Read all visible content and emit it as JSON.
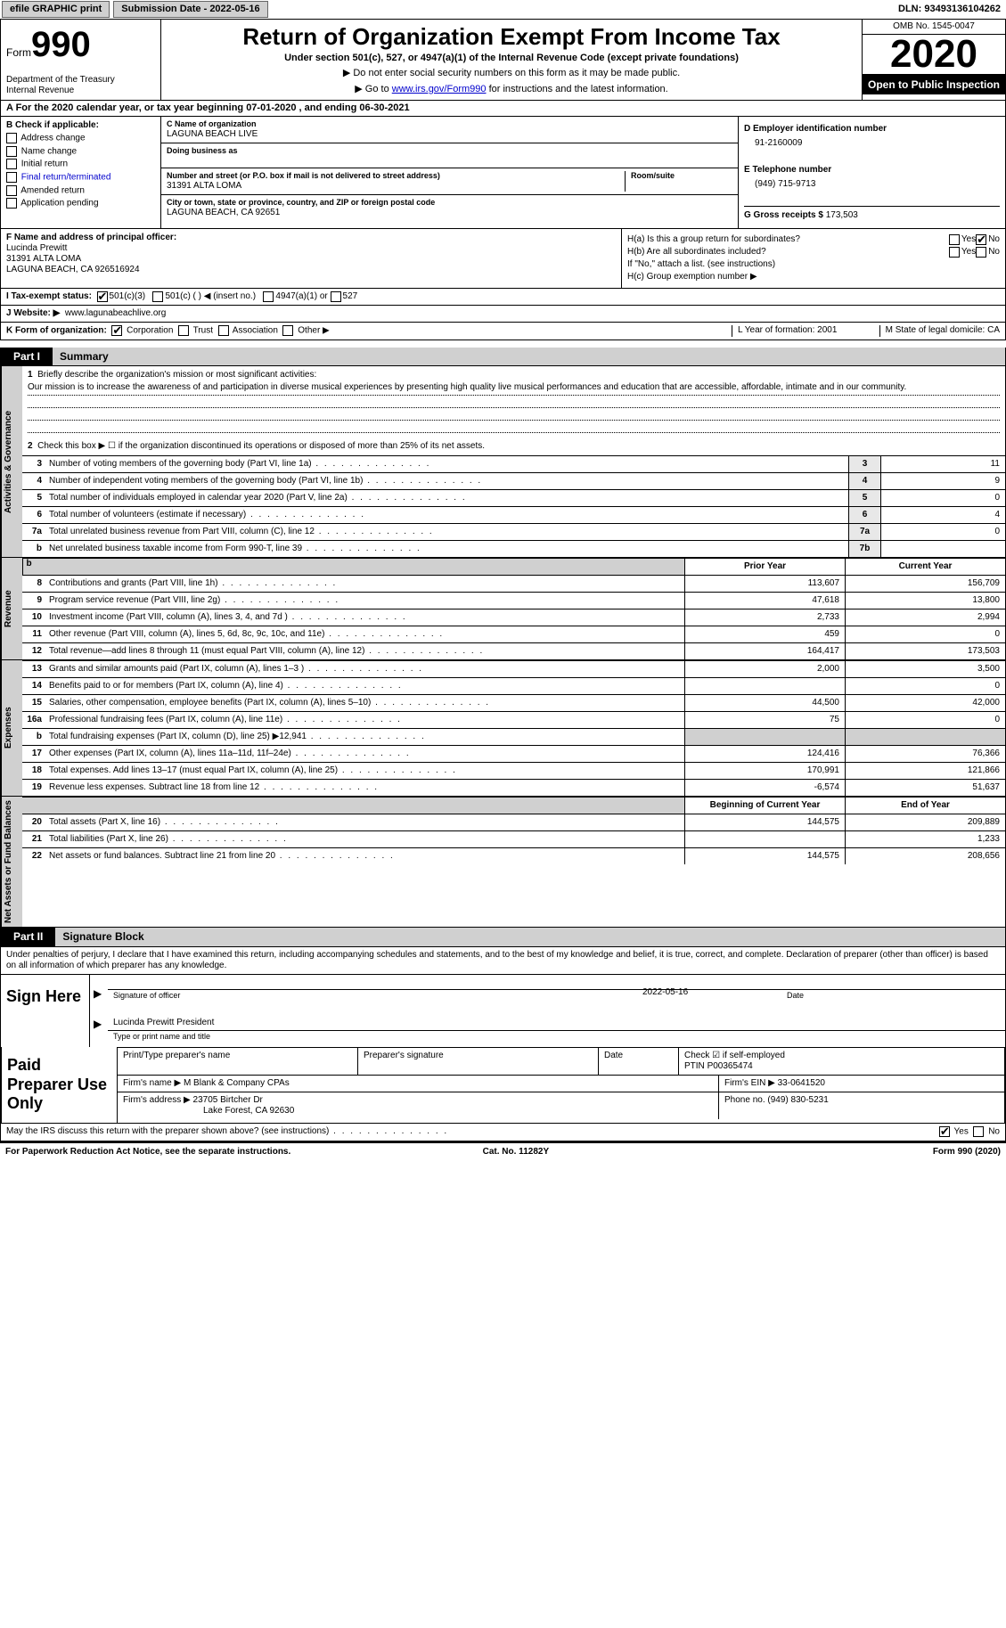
{
  "topbar": {
    "efile": "efile GRAPHIC print",
    "submission": "Submission Date - 2022-05-16",
    "dln_label": "DLN:",
    "dln": "93493136104262"
  },
  "header": {
    "form_label": "Form",
    "form_num": "990",
    "dept": "Department of the Treasury\nInternal Revenue",
    "title": "Return of Organization Exempt From Income Tax",
    "subtitle": "Under section 501(c), 527, or 4947(a)(1) of the Internal Revenue Code (except private foundations)",
    "note1": "▶ Do not enter social security numbers on this form as it may be made public.",
    "note2_pre": "▶ Go to ",
    "note2_link": "www.irs.gov/Form990",
    "note2_post": " for instructions and the latest information.",
    "omb": "OMB No. 1545-0047",
    "year": "2020",
    "inspection": "Open to Public Inspection"
  },
  "line_a": "A For the 2020 calendar year, or tax year beginning 07-01-2020    , and ending 06-30-2021",
  "section_b": {
    "label": "B Check if applicable:",
    "items": [
      "Address change",
      "Name change",
      "Initial return",
      "Final return/terminated",
      "Amended return",
      "Application pending"
    ]
  },
  "section_c": {
    "name_lbl": "C Name of organization",
    "name": "LAGUNA BEACH LIVE",
    "dba_lbl": "Doing business as",
    "dba": "",
    "addr_lbl": "Number and street (or P.O. box if mail is not delivered to street address)",
    "room_lbl": "Room/suite",
    "addr": "31391 ALTA LOMA",
    "city_lbl": "City or town, state or province, country, and ZIP or foreign postal code",
    "city": "LAGUNA BEACH, CA  92651"
  },
  "section_d": {
    "lbl": "D Employer identification number",
    "ein": "91-2160009",
    "phone_lbl": "E Telephone number",
    "phone": "(949) 715-9713",
    "gross_lbl": "G Gross receipts $",
    "gross": "173,503"
  },
  "section_f": {
    "lbl": "F  Name and address of principal officer:",
    "name": "Lucinda Prewitt",
    "addr1": "31391 ALTA LOMA",
    "addr2": "LAGUNA BEACH, CA  926516924"
  },
  "section_h": {
    "ha": "H(a)  Is this a group return for subordinates?",
    "hb": "H(b)  Are all subordinates included?",
    "hb_note": "If \"No,\" attach a list. (see instructions)",
    "hc": "H(c)  Group exemption number ▶",
    "yes": "Yes",
    "no": "No"
  },
  "section_i": {
    "lbl": "I    Tax-exempt status:",
    "o1": "501(c)(3)",
    "o2": "501(c) (  ) ◀ (insert no.)",
    "o3": "4947(a)(1) or",
    "o4": "527"
  },
  "section_j": {
    "lbl": "J   Website: ▶",
    "url": "www.lagunabeachlive.org"
  },
  "section_k": {
    "lbl": "K Form of organization:",
    "o1": "Corporation",
    "o2": "Trust",
    "o3": "Association",
    "o4": "Other ▶"
  },
  "section_lm": {
    "l": "L Year of formation: 2001",
    "m": "M State of legal domicile: CA"
  },
  "part1": {
    "tag": "Part I",
    "title": "Summary",
    "v1": "Activities & Governance",
    "v2": "Revenue",
    "v3": "Expenses",
    "v4": "Net Assets or Fund Balances",
    "q1n": "1",
    "q1": "Briefly describe the organization's mission or most significant activities:",
    "mission": "Our mission is to increase the awareness of and participation in diverse musical experiences by presenting high quality live musical performances and education that are accessible, affordable, intimate and in our community.",
    "q2n": "2",
    "q2": "Check this box ▶ ☐  if the organization discontinued its operations or disposed of more than 25% of its net assets.",
    "lines": [
      {
        "n": "3",
        "d": "Number of voting members of the governing body (Part VI, line 1a)",
        "box": "3",
        "v": "11"
      },
      {
        "n": "4",
        "d": "Number of independent voting members of the governing body (Part VI, line 1b)",
        "box": "4",
        "v": "9"
      },
      {
        "n": "5",
        "d": "Total number of individuals employed in calendar year 2020 (Part V, line 2a)",
        "box": "5",
        "v": "0"
      },
      {
        "n": "6",
        "d": "Total number of volunteers (estimate if necessary)",
        "box": "6",
        "v": "4"
      },
      {
        "n": "7a",
        "d": "Total unrelated business revenue from Part VIII, column (C), line 12",
        "box": "7a",
        "v": "0"
      },
      {
        "n": "b",
        "d": "Net unrelated business taxable income from Form 990-T, line 39",
        "box": "7b",
        "v": ""
      }
    ],
    "colh1": "Prior Year",
    "colh2": "Current Year",
    "rev": [
      {
        "n": "8",
        "d": "Contributions and grants (Part VIII, line 1h)",
        "c1": "113,607",
        "c2": "156,709"
      },
      {
        "n": "9",
        "d": "Program service revenue (Part VIII, line 2g)",
        "c1": "47,618",
        "c2": "13,800"
      },
      {
        "n": "10",
        "d": "Investment income (Part VIII, column (A), lines 3, 4, and 7d )",
        "c1": "2,733",
        "c2": "2,994"
      },
      {
        "n": "11",
        "d": "Other revenue (Part VIII, column (A), lines 5, 6d, 8c, 9c, 10c, and 11e)",
        "c1": "459",
        "c2": "0"
      },
      {
        "n": "12",
        "d": "Total revenue—add lines 8 through 11 (must equal Part VIII, column (A), line 12)",
        "c1": "164,417",
        "c2": "173,503"
      }
    ],
    "exp": [
      {
        "n": "13",
        "d": "Grants and similar amounts paid (Part IX, column (A), lines 1–3 )",
        "c1": "2,000",
        "c2": "3,500"
      },
      {
        "n": "14",
        "d": "Benefits paid to or for members (Part IX, column (A), line 4)",
        "c1": "",
        "c2": "0"
      },
      {
        "n": "15",
        "d": "Salaries, other compensation, employee benefits (Part IX, column (A), lines 5–10)",
        "c1": "44,500",
        "c2": "42,000"
      },
      {
        "n": "16a",
        "d": "Professional fundraising fees (Part IX, column (A), line 11e)",
        "c1": "75",
        "c2": "0"
      },
      {
        "n": "b",
        "d": "Total fundraising expenses (Part IX, column (D), line 25) ▶12,941",
        "c1": "",
        "c2": "",
        "shade": true
      },
      {
        "n": "17",
        "d": "Other expenses (Part IX, column (A), lines 11a–11d, 11f–24e)",
        "c1": "124,416",
        "c2": "76,366"
      },
      {
        "n": "18",
        "d": "Total expenses. Add lines 13–17 (must equal Part IX, column (A), line 25)",
        "c1": "170,991",
        "c2": "121,866"
      },
      {
        "n": "19",
        "d": "Revenue less expenses. Subtract line 18 from line 12",
        "c1": "-6,574",
        "c2": "51,637"
      }
    ],
    "colh3": "Beginning of Current Year",
    "colh4": "End of Year",
    "net": [
      {
        "n": "20",
        "d": "Total assets (Part X, line 16)",
        "c1": "144,575",
        "c2": "209,889"
      },
      {
        "n": "21",
        "d": "Total liabilities (Part X, line 26)",
        "c1": "",
        "c2": "1,233"
      },
      {
        "n": "22",
        "d": "Net assets or fund balances. Subtract line 21 from line 20",
        "c1": "144,575",
        "c2": "208,656"
      }
    ]
  },
  "part2": {
    "tag": "Part II",
    "title": "Signature Block",
    "intro": "Under penalties of perjury, I declare that I have examined this return, including accompanying schedules and statements, and to the best of my knowledge and belief, it is true, correct, and complete. Declaration of preparer (other than officer) is based on all information of which preparer has any knowledge.",
    "sign_here": "Sign Here",
    "sig_officer": "Signature of officer",
    "sig_date_lbl": "Date",
    "sig_date": "2022-05-16",
    "officer_name": "Lucinda Prewitt  President",
    "officer_sub": "Type or print name and title",
    "paid": "Paid Preparer Use Only",
    "h1": "Print/Type preparer's name",
    "h2": "Preparer's signature",
    "h3": "Date",
    "h4_check": "Check ☑ if self-employed",
    "h4_ptin_lbl": "PTIN",
    "h4_ptin": "P00365474",
    "firm_name_lbl": "Firm's name    ▶",
    "firm_name": "M Blank & Company CPAs",
    "firm_ein_lbl": "Firm's EIN ▶",
    "firm_ein": "33-0641520",
    "firm_addr_lbl": "Firm's address ▶",
    "firm_addr1": "23705 Birtcher Dr",
    "firm_addr2": "Lake Forest, CA  92630",
    "firm_phone_lbl": "Phone no.",
    "firm_phone": "(949) 830-5231",
    "discuss": "May the IRS discuss this return with the preparer shown above? (see instructions)",
    "yes": "Yes",
    "no": "No"
  },
  "footer": {
    "left": "For Paperwork Reduction Act Notice, see the separate instructions.",
    "mid": "Cat. No. 11282Y",
    "right": "Form 990 (2020)"
  }
}
